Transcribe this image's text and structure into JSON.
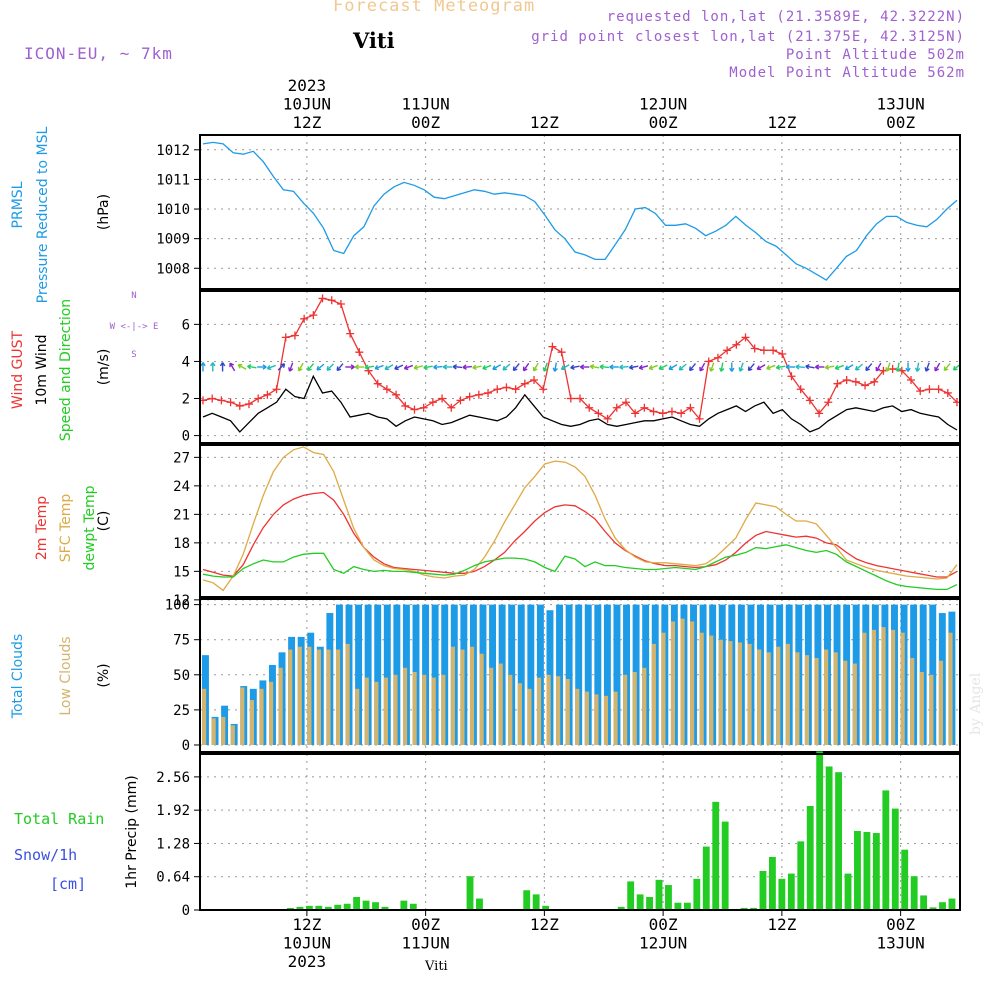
{
  "header": {
    "title": "Forecast Meteogram",
    "station": "Viti",
    "model": "ICON-EU, ~ 7km",
    "requested": "requested lon,lat (21.3589E, 42.3222N)",
    "gridpoint": "grid point closest lon,lat (21.375E, 42.3125N)",
    "point_alt": "Point Altitude 502m",
    "model_alt": "Model Point Altitude 562m",
    "bottom_label": "Viti",
    "credit": "by Angel"
  },
  "time_axis": {
    "year": "2023",
    "start_hour": 0,
    "end_hour": 64,
    "ticks": [
      {
        "hour": 9,
        "top": [
          "2023",
          "10JUN",
          "12Z"
        ],
        "bottom": [
          "12Z",
          "10JUN",
          "2023"
        ]
      },
      {
        "hour": 19,
        "top": [
          "11JUN",
          "00Z"
        ],
        "bottom": [
          "00Z",
          "11JUN"
        ]
      },
      {
        "hour": 29,
        "top": [
          "12Z"
        ],
        "bottom": [
          "12Z"
        ]
      },
      {
        "hour": 39,
        "top": [
          "12JUN",
          "00Z"
        ],
        "bottom": [
          "00Z",
          "12JUN"
        ]
      },
      {
        "hour": 49,
        "top": [
          "12Z"
        ],
        "bottom": [
          "12Z"
        ]
      },
      {
        "hour": 59,
        "top": [
          "13JUN",
          "00Z"
        ],
        "bottom": [
          "00Z",
          "13JUN"
        ]
      }
    ]
  },
  "colors": {
    "pressure": "#1e9be6",
    "gust": "#ee3333",
    "wind": "#000000",
    "temp": "#ee3333",
    "sfc": "#ddaa44",
    "dewpt": "#22cc22",
    "total_clouds": "#1e9be6",
    "low_clouds": "#d2b46e",
    "rain": "#22cc22",
    "snow": "#3a50e0",
    "purple": "#a060d0"
  },
  "chart_data": [
    {
      "type": "line",
      "id": "pressure",
      "title": "PRMSL Pressure Reduced to MSL",
      "ylabel_lines": [
        "PRMSL",
        "Pressure Reduced to MSL"
      ],
      "yunit": "(hPa)",
      "ylim": [
        1007.3,
        1012.5
      ],
      "yticks": [
        1008,
        1009,
        1010,
        1011,
        1012
      ],
      "x_start": 0,
      "x_step": 1,
      "series": [
        {
          "name": "Pressure",
          "color": "#1e9be6",
          "values": [
            1012.2,
            1012.25,
            1012.2,
            1011.9,
            1011.85,
            1011.95,
            1011.6,
            1011.1,
            1010.65,
            1010.6,
            1010.2,
            1009.85,
            1009.35,
            1008.6,
            1008.5,
            1009.1,
            1009.4,
            1010.1,
            1010.5,
            1010.75,
            1010.9,
            1010.8,
            1010.65,
            1010.4,
            1010.35,
            1010.45,
            1010.55,
            1010.65,
            1010.6,
            1010.5,
            1010.55,
            1010.5,
            1010.45,
            1010.25,
            1009.8,
            1009.3,
            1009.0,
            1008.55,
            1008.45,
            1008.3,
            1008.3,
            1008.8,
            1009.3,
            1010.0,
            1010.05,
            1009.85,
            1009.45,
            1009.45,
            1009.5,
            1009.35,
            1009.1,
            1009.25,
            1009.45,
            1009.75,
            1009.45,
            1009.2,
            1008.9,
            1008.75,
            1008.45,
            1008.15,
            1008.0,
            1007.8,
            1007.6,
            1008.0,
            1008.4,
            1008.6,
            1009.1,
            1009.5,
            1009.75,
            1009.75,
            1009.55,
            1009.45,
            1009.4,
            1009.65,
            1010.0,
            1010.3
          ]
        }
      ]
    },
    {
      "type": "line",
      "id": "wind",
      "title": "Wind GUST / 10m Wind Speed and Direction",
      "ylabel_lines": [
        "Wind GUST",
        "10m Wind",
        "Speed and Direction"
      ],
      "yunit": "(m/s)",
      "compass": [
        "N",
        "W <-|-> E",
        "S"
      ],
      "ylim": [
        -0.4,
        7.8
      ],
      "yticks": [
        0,
        2,
        4,
        6
      ],
      "x_start": 0,
      "x_step": 1,
      "series": [
        {
          "name": "Wind GUST",
          "color": "#ee3333",
          "marker": "+",
          "values": [
            1.9,
            2.0,
            1.9,
            1.8,
            1.6,
            1.7,
            2.0,
            2.2,
            2.5,
            5.3,
            5.4,
            6.3,
            6.5,
            7.4,
            7.3,
            7.1,
            5.5,
            4.5,
            3.5,
            2.8,
            2.5,
            2.2,
            1.6,
            1.4,
            1.5,
            1.8,
            2.0,
            1.5,
            1.9,
            2.1,
            2.2,
            2.3,
            2.5,
            2.6,
            2.5,
            2.8,
            3.0,
            2.5,
            4.8,
            4.5,
            2.0,
            2.0,
            1.5,
            1.2,
            0.9,
            1.5,
            1.8,
            1.2,
            1.5,
            1.3,
            1.2,
            1.3,
            1.2,
            1.5,
            0.9,
            4.0,
            4.2,
            4.6,
            4.9,
            5.3,
            4.7,
            4.6,
            4.6,
            4.4,
            3.2,
            2.5,
            1.9,
            1.2,
            1.8,
            2.8,
            3.0,
            2.9,
            2.7,
            2.9,
            3.5,
            3.6,
            3.5,
            3.0,
            2.4,
            2.5,
            2.5,
            2.3,
            1.8
          ]
        },
        {
          "name": "10m Wind",
          "color": "#000000",
          "values": [
            1.0,
            1.2,
            1.0,
            0.8,
            0.2,
            0.7,
            1.2,
            1.5,
            1.8,
            2.5,
            2.1,
            2.0,
            3.2,
            2.3,
            2.4,
            1.8,
            1.0,
            1.1,
            1.2,
            1.0,
            0.9,
            0.5,
            0.8,
            1.0,
            0.9,
            0.8,
            0.6,
            0.7,
            0.9,
            1.1,
            1.0,
            0.9,
            0.8,
            1.0,
            1.5,
            2.2,
            1.6,
            1.0,
            0.8,
            0.6,
            0.5,
            0.6,
            0.8,
            0.9,
            0.6,
            0.5,
            0.6,
            0.7,
            0.8,
            0.8,
            0.9,
            1.0,
            0.8,
            0.6,
            0.5,
            0.9,
            1.2,
            1.4,
            1.6,
            1.3,
            1.6,
            1.8,
            1.2,
            1.4,
            0.9,
            0.6,
            0.2,
            0.4,
            0.8,
            1.1,
            1.4,
            1.5,
            1.4,
            1.3,
            1.5,
            1.6,
            1.3,
            1.4,
            1.2,
            1.1,
            1.0,
            0.6,
            0.3
          ]
        }
      ],
      "wind_arrows": {
        "y_base": 3.7,
        "directions_deg": [
          0,
          0,
          0,
          330,
          300,
          280,
          90,
          250,
          45,
          200,
          210,
          220,
          230,
          225,
          220,
          90,
          270,
          260,
          250,
          240,
          245,
          250,
          255,
          260,
          265,
          270,
          275,
          265,
          260,
          250,
          240,
          230,
          220,
          215,
          210,
          200,
          190,
          240,
          260,
          270,
          280,
          275,
          270,
          265,
          260,
          255,
          250,
          245,
          240,
          230,
          220,
          210,
          200,
          190,
          180,
          200,
          220,
          240,
          250,
          260,
          270,
          275,
          280,
          270,
          260,
          250,
          240,
          230,
          220,
          210,
          200,
          190,
          180,
          190,
          200,
          210,
          220,
          230
        ]
      }
    },
    {
      "type": "line",
      "id": "temperature",
      "title": "2m Temp / SFC Temp / dewpt Temp",
      "ylabel_lines": [
        "2m Temp",
        "SFC Temp",
        "dewpt Temp"
      ],
      "yunit": "(C)",
      "ylim": [
        12.3,
        28.3
      ],
      "yticks": [
        12,
        15,
        18,
        21,
        24,
        27
      ],
      "x_start": 0,
      "x_step": 1,
      "series": [
        {
          "name": "2m Temp",
          "color": "#ee3333",
          "values": [
            15.2,
            14.9,
            14.6,
            14.5,
            15.7,
            17.8,
            19.6,
            21.0,
            22.0,
            22.6,
            23.0,
            23.2,
            23.3,
            22.5,
            21.0,
            19.0,
            17.5,
            16.5,
            15.8,
            15.4,
            15.3,
            15.2,
            15.1,
            15.0,
            14.9,
            14.8,
            14.8,
            15.0,
            15.5,
            16.2,
            17.0,
            18.2,
            19.2,
            20.3,
            21.2,
            21.8,
            22.0,
            21.9,
            21.3,
            20.5,
            19.2,
            18.0,
            17.2,
            16.6,
            16.1,
            15.8,
            15.6,
            15.6,
            15.5,
            15.4,
            15.5,
            15.7,
            16.2,
            17.0,
            18.0,
            18.8,
            19.2,
            19.0,
            18.8,
            18.6,
            18.7,
            18.5,
            18.0,
            17.8,
            17.0,
            16.3,
            15.9,
            15.6,
            15.4,
            15.2,
            15.0,
            14.8,
            14.6,
            14.4,
            14.4,
            15.0
          ]
        },
        {
          "name": "SFC Temp",
          "color": "#ddaa44",
          "values": [
            14.1,
            13.8,
            13.0,
            14.5,
            16.8,
            20.0,
            23.0,
            25.5,
            27.0,
            27.8,
            28.1,
            27.5,
            27.3,
            25.5,
            22.5,
            19.5,
            17.5,
            16.2,
            15.6,
            15.3,
            15.2,
            15.0,
            14.6,
            14.4,
            14.3,
            14.5,
            14.6,
            15.2,
            16.5,
            18.2,
            20.2,
            22.0,
            23.8,
            25.0,
            26.3,
            26.6,
            26.5,
            26.0,
            25.0,
            23.0,
            20.5,
            18.5,
            17.3,
            16.5,
            16.0,
            15.9,
            15.9,
            15.8,
            15.7,
            15.6,
            15.8,
            16.5,
            17.5,
            18.5,
            20.5,
            22.2,
            22.0,
            21.8,
            21.0,
            20.3,
            20.3,
            20.0,
            18.8,
            17.5,
            16.2,
            15.8,
            15.4,
            15.1,
            14.9,
            14.7,
            14.5,
            14.4,
            14.3,
            14.2,
            14.3,
            15.7
          ]
        },
        {
          "name": "dewpt Temp",
          "color": "#22cc22",
          "values": [
            14.7,
            14.5,
            14.4,
            14.4,
            15.3,
            15.8,
            16.2,
            16.0,
            16.0,
            16.5,
            16.8,
            16.9,
            16.9,
            15.2,
            14.8,
            15.5,
            15.2,
            15.0,
            15.1,
            15.0,
            15.0,
            14.9,
            14.8,
            14.7,
            14.6,
            14.7,
            15.1,
            15.6,
            16.0,
            16.2,
            16.4,
            16.4,
            16.3,
            16.0,
            15.4,
            15.0,
            16.6,
            16.3,
            15.5,
            16.0,
            15.6,
            15.6,
            15.4,
            15.3,
            15.2,
            15.2,
            15.3,
            15.4,
            15.3,
            15.2,
            15.5,
            16.0,
            16.5,
            16.7,
            17.0,
            17.5,
            17.4,
            17.6,
            17.8,
            17.5,
            17.2,
            17.0,
            17.2,
            16.8,
            16.0,
            15.5,
            15.0,
            14.5,
            14.0,
            13.6,
            13.4,
            13.3,
            13.2,
            13.1,
            13.1,
            13.6
          ]
        }
      ]
    },
    {
      "type": "bar",
      "id": "clouds",
      "title": "Total Clouds / Low Clouds",
      "ylabel_lines": [
        "Total Clouds",
        "Low Clouds"
      ],
      "yunit": "(%)",
      "ylim": [
        -5,
        104
      ],
      "yticks": [
        0,
        25,
        50,
        75,
        100
      ],
      "x_start": 0,
      "x_step": 1,
      "series": [
        {
          "name": "Total Clouds",
          "color": "#1e9be6",
          "values": [
            64,
            20,
            28,
            15,
            42,
            40,
            46,
            57,
            66,
            77,
            77,
            80,
            70,
            94,
            100,
            100,
            100,
            100,
            100,
            100,
            100,
            100,
            100,
            100,
            100,
            100,
            100,
            100,
            100,
            100,
            100,
            100,
            100,
            100,
            100,
            100,
            96,
            100,
            100,
            100,
            100,
            100,
            100,
            100,
            100,
            100,
            100,
            100,
            100,
            100,
            100,
            100,
            100,
            100,
            100,
            100,
            100,
            100,
            100,
            100,
            100,
            100,
            100,
            100,
            100,
            100,
            100,
            100,
            100,
            100,
            100,
            100,
            100,
            100,
            100,
            100,
            100,
            94,
            95
          ]
        },
        {
          "name": "Low Clouds",
          "color": "#d2b46e",
          "values": [
            40,
            19,
            20,
            14,
            41,
            32,
            40,
            45,
            55,
            68,
            70,
            70,
            68,
            68,
            68,
            72,
            40,
            48,
            45,
            48,
            50,
            55,
            52,
            50,
            48,
            50,
            70,
            68,
            70,
            65,
            55,
            58,
            50,
            44,
            40,
            48,
            50,
            49,
            47,
            40,
            38,
            36,
            35,
            38,
            50,
            52,
            55,
            72,
            80,
            88,
            90,
            88,
            80,
            78,
            75,
            74,
            73,
            72,
            68,
            66,
            70,
            72,
            66,
            64,
            62,
            68,
            66,
            60,
            58,
            80,
            82,
            84,
            82,
            80,
            62,
            52,
            50,
            60,
            80
          ]
        }
      ]
    },
    {
      "type": "bar",
      "id": "precip",
      "title": "Total Rain / Snow/1h [cm]",
      "ylabel_lines": [
        "Total  Rain",
        "Snow/1h",
        "[cm]"
      ],
      "yunit": "1hr Precip (mm)",
      "ylim": [
        0,
        3.0
      ],
      "yticks": [
        0,
        0.64,
        1.28,
        1.92,
        2.56
      ],
      "x_start": 0,
      "x_step": 1,
      "series": [
        {
          "name": "Total Rain",
          "color": "#22cc22",
          "values": [
            0.01,
            0,
            0,
            0,
            0,
            0,
            0,
            0,
            0,
            0.04,
            0.06,
            0.08,
            0.08,
            0.06,
            0.1,
            0.12,
            0.25,
            0.18,
            0.15,
            0.06,
            0.02,
            0.18,
            0.12,
            0,
            0,
            0,
            0,
            0,
            0.65,
            0.22,
            0,
            0,
            0,
            0.02,
            0.38,
            0.3,
            0.08,
            0,
            0,
            0,
            0,
            0,
            0,
            0,
            0.06,
            0.55,
            0.3,
            0.25,
            0.58,
            0.48,
            0.14,
            0.14,
            0.6,
            1.22,
            2.08,
            1.7,
            0.02,
            0.04,
            0.04,
            0.75,
            1.02,
            0.6,
            0.7,
            1.32,
            2.0,
            3.05,
            2.76,
            2.65,
            0.7,
            1.52,
            1.5,
            1.48,
            2.3,
            1.95,
            1.16,
            0.65,
            0.28,
            0.05,
            0.15,
            0.22
          ]
        },
        {
          "name": "Snow/1h",
          "color": "#3a50e0",
          "values": []
        }
      ]
    }
  ]
}
